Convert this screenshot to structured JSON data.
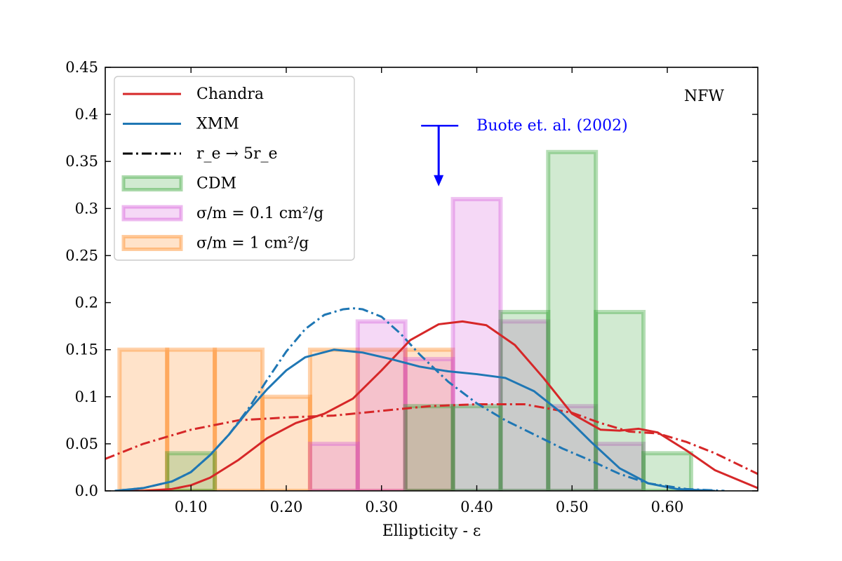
{
  "chart_data": {
    "type": "bar",
    "title": "",
    "xlabel": "Ellipticity - ε",
    "ylabel": "",
    "xlim": [
      0.01,
      0.695
    ],
    "ylim": [
      0.0,
      0.45
    ],
    "x_ticks": [
      0.1,
      0.2,
      0.3,
      0.4,
      0.5,
      0.6
    ],
    "x_tick_labels": [
      "0.10",
      "0.20",
      "0.30",
      "0.40",
      "0.50",
      "0.60"
    ],
    "y_ticks": [
      0.0,
      0.05,
      0.1,
      0.15,
      0.2,
      0.25,
      0.3,
      0.35,
      0.4,
      0.45
    ],
    "y_tick_labels": [
      "0.0",
      "0.05",
      "0.1",
      "0.15",
      "0.2",
      "0.25",
      "0.3",
      "0.35",
      "0.4",
      "0.45"
    ],
    "corner_label": "NFW",
    "histograms": [
      {
        "name": "σ/m = 1 cm²/g",
        "key": "sidm1",
        "color": "#ff7f0e",
        "bins": [
          [
            0.025,
            0.075,
            0.15
          ],
          [
            0.075,
            0.125,
            0.15
          ],
          [
            0.125,
            0.175,
            0.15
          ],
          [
            0.175,
            0.225,
            0.1
          ],
          [
            0.225,
            0.275,
            0.15
          ],
          [
            0.275,
            0.325,
            0.15
          ],
          [
            0.325,
            0.375,
            0.15
          ]
        ]
      },
      {
        "name": "σ/m = 0.1 cm²/g",
        "key": "sidm01",
        "color": "#d14fd8",
        "bins": [
          [
            0.225,
            0.275,
            0.05
          ],
          [
            0.275,
            0.325,
            0.18
          ],
          [
            0.325,
            0.375,
            0.14
          ],
          [
            0.375,
            0.425,
            0.31
          ],
          [
            0.425,
            0.475,
            0.18
          ],
          [
            0.475,
            0.525,
            0.09
          ],
          [
            0.525,
            0.575,
            0.05
          ]
        ]
      },
      {
        "name": "CDM",
        "key": "cdm",
        "color": "#2ca02c",
        "bins": [
          [
            0.075,
            0.125,
            0.04
          ],
          [
            0.125,
            0.175,
            0.0
          ],
          [
            0.175,
            0.225,
            0.0
          ],
          [
            0.225,
            0.275,
            0.0
          ],
          [
            0.275,
            0.325,
            0.0
          ],
          [
            0.325,
            0.375,
            0.09
          ],
          [
            0.375,
            0.425,
            0.09
          ],
          [
            0.425,
            0.475,
            0.19
          ],
          [
            0.475,
            0.525,
            0.36
          ],
          [
            0.525,
            0.575,
            0.19
          ],
          [
            0.575,
            0.625,
            0.04
          ]
        ]
      }
    ],
    "curves": [
      {
        "name": "Chandra",
        "color": "#d62728",
        "style": "solid",
        "x": [
          0.02,
          0.05,
          0.08,
          0.1,
          0.12,
          0.15,
          0.18,
          0.21,
          0.24,
          0.27,
          0.3,
          0.33,
          0.36,
          0.385,
          0.41,
          0.44,
          0.47,
          0.5,
          0.53,
          0.55,
          0.57,
          0.59,
          0.62,
          0.65,
          0.695
        ],
        "y": [
          0.0,
          0.0,
          0.002,
          0.006,
          0.014,
          0.033,
          0.056,
          0.072,
          0.082,
          0.098,
          0.128,
          0.16,
          0.177,
          0.18,
          0.176,
          0.155,
          0.12,
          0.082,
          0.065,
          0.064,
          0.066,
          0.062,
          0.043,
          0.022,
          0.003
        ]
      },
      {
        "name": "XMM",
        "color": "#1f77b4",
        "style": "solid",
        "x": [
          0.02,
          0.05,
          0.08,
          0.1,
          0.12,
          0.14,
          0.16,
          0.18,
          0.2,
          0.22,
          0.25,
          0.28,
          0.31,
          0.34,
          0.37,
          0.4,
          0.43,
          0.46,
          0.49,
          0.52,
          0.55,
          0.58,
          0.61,
          0.65
        ],
        "y": [
          0.0,
          0.003,
          0.01,
          0.02,
          0.038,
          0.06,
          0.085,
          0.108,
          0.128,
          0.142,
          0.15,
          0.147,
          0.14,
          0.132,
          0.127,
          0.124,
          0.12,
          0.106,
          0.082,
          0.052,
          0.024,
          0.008,
          0.002,
          0.0
        ]
      }
    ],
    "dashdot_curves": [
      {
        "name": "Chandra r_e → 5r_e",
        "color": "#d62728",
        "x": [
          0.01,
          0.05,
          0.1,
          0.15,
          0.2,
          0.25,
          0.3,
          0.35,
          0.4,
          0.45,
          0.5,
          0.53,
          0.56,
          0.59,
          0.62,
          0.65,
          0.695
        ],
        "y": [
          0.034,
          0.05,
          0.065,
          0.075,
          0.078,
          0.08,
          0.085,
          0.09,
          0.092,
          0.092,
          0.083,
          0.072,
          0.063,
          0.061,
          0.052,
          0.04,
          0.018
        ]
      },
      {
        "name": "XMM r_e → 5r_e",
        "color": "#1f77b4",
        "x": [
          0.02,
          0.05,
          0.08,
          0.1,
          0.12,
          0.14,
          0.16,
          0.18,
          0.2,
          0.22,
          0.24,
          0.26,
          0.27,
          0.28,
          0.3,
          0.32,
          0.34,
          0.37,
          0.4,
          0.43,
          0.46,
          0.49,
          0.52,
          0.55,
          0.58,
          0.62,
          0.66
        ],
        "y": [
          0.0,
          0.003,
          0.01,
          0.02,
          0.038,
          0.06,
          0.087,
          0.118,
          0.148,
          0.172,
          0.187,
          0.193,
          0.194,
          0.193,
          0.185,
          0.167,
          0.145,
          0.116,
          0.093,
          0.075,
          0.06,
          0.045,
          0.032,
          0.018,
          0.008,
          0.002,
          0.0
        ]
      }
    ],
    "legend": {
      "placement": "upper-left",
      "entries": [
        {
          "label": "Chandra",
          "kind": "line",
          "color": "#d62728",
          "dash": ""
        },
        {
          "label": "XMM",
          "kind": "line",
          "color": "#1f77b4",
          "dash": ""
        },
        {
          "label": "r_e → 5r_e",
          "kind": "line",
          "color": "#000000",
          "dash": "dashdot"
        },
        {
          "label": "CDM",
          "kind": "patch",
          "color": "#2ca02c"
        },
        {
          "label": "σ/m = 0.1 cm²/g",
          "kind": "patch",
          "color": "#d14fd8"
        },
        {
          "label": "σ/m = 1 cm²/g",
          "kind": "patch",
          "color": "#ff7f0e"
        }
      ]
    },
    "annotation": {
      "text": "Buote et. al. (2002)",
      "color": "#0000ff",
      "x": 0.36,
      "y_top": 0.388,
      "y_bottom": 0.325
    }
  }
}
